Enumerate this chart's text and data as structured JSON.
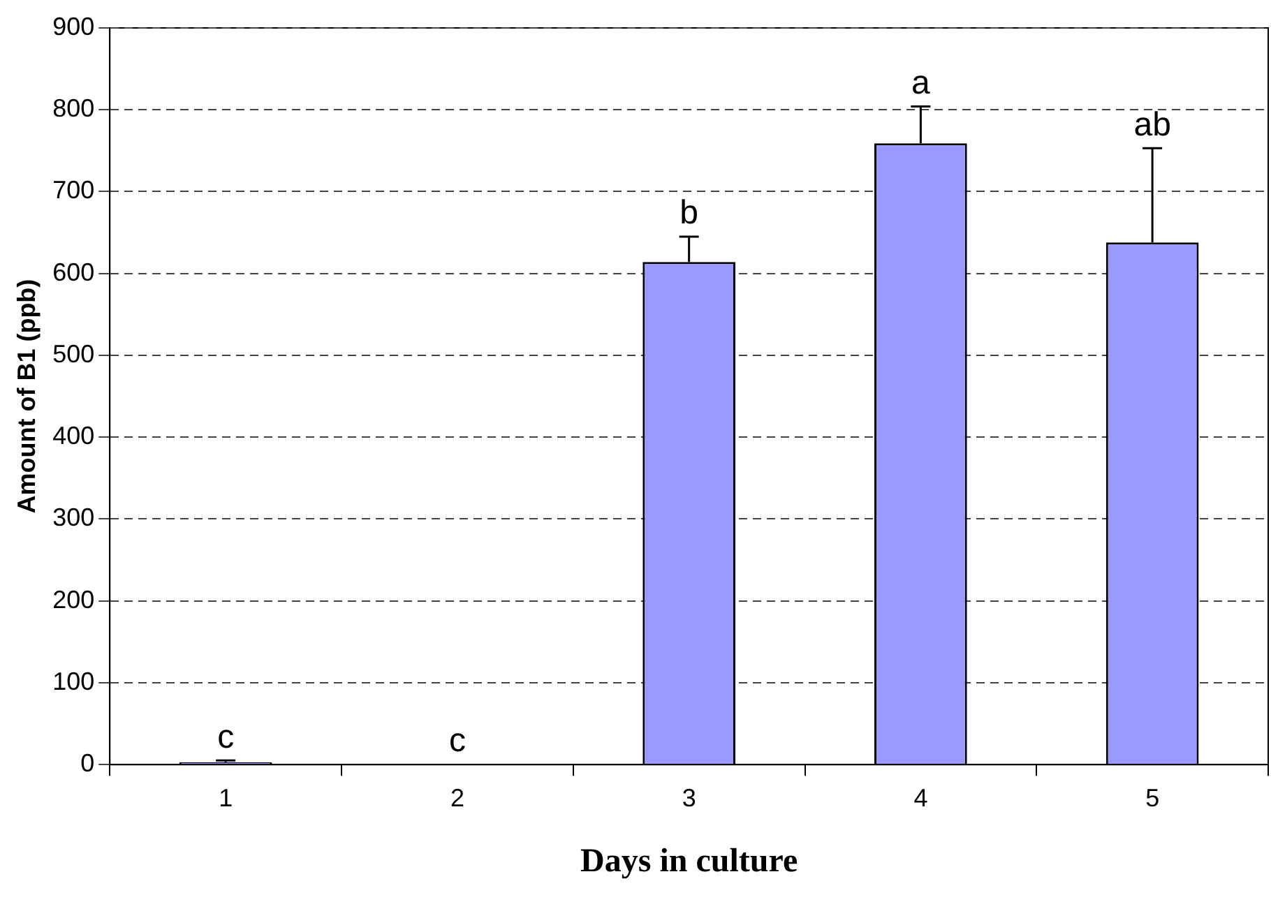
{
  "chart_data": {
    "type": "bar",
    "xlabel": "Days in culture",
    "ylabel": "Amount of B1 (ppb)",
    "categories": [
      "1",
      "2",
      "3",
      "4",
      "5"
    ],
    "values": [
      3,
      0,
      614,
      759,
      638
    ],
    "errors": [
      [
        3,
        5
      ],
      null,
      [
        614,
        645
      ],
      [
        759,
        804
      ],
      [
        638,
        753
      ]
    ],
    "color": "#9999ff",
    "ylim": [
      0,
      900
    ],
    "yticks": [
      0,
      100,
      200,
      300,
      400,
      500,
      600,
      700,
      800,
      900
    ],
    "grid": "y",
    "legend": false,
    "annotations": [
      "c",
      "c",
      "b",
      "a",
      "ab"
    ]
  }
}
